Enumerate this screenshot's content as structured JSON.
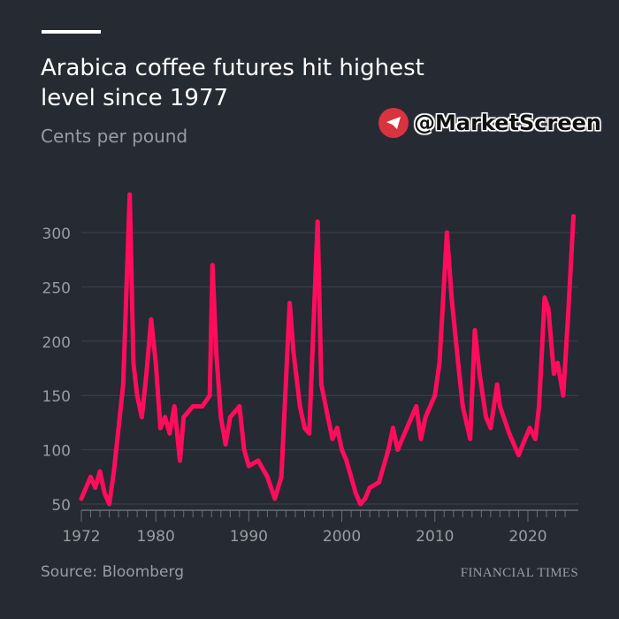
{
  "header": {
    "title": "Arabica coffee futures hit highest level since 1977",
    "subtitle": "Cents per pound"
  },
  "watermark": {
    "text": "@MarketScreen",
    "icon": "telegram-icon"
  },
  "footer": {
    "source": "Source: Bloomberg",
    "brand": "FINANCIAL TIMES"
  },
  "colors": {
    "background": "#262a33",
    "line": "#ff0d5c",
    "grid": "#3d414b",
    "text": "#9a9ca3"
  },
  "chart_data": {
    "type": "line",
    "title": "Arabica coffee futures hit highest level since 1977",
    "ylabel": "Cents per pound",
    "ylim": [
      50,
      340
    ],
    "xlim": [
      1972,
      2025
    ],
    "yticks": [
      50,
      100,
      150,
      200,
      250,
      300
    ],
    "xticks": [
      1972,
      1980,
      1990,
      2000,
      2010,
      2020
    ],
    "grid": true,
    "x": [
      1972,
      1973,
      1973.5,
      1974,
      1974.5,
      1975,
      1975.5,
      1976,
      1976.5,
      1977.2,
      1977.6,
      1978,
      1978.5,
      1979,
      1979.5,
      1980,
      1980.5,
      1981,
      1981.5,
      1982,
      1982.6,
      1983,
      1984,
      1985,
      1985.8,
      1986.1,
      1986.5,
      1987,
      1987.5,
      1988,
      1989,
      1989.5,
      1990,
      1991,
      1992,
      1992.8,
      1993.5,
      1994.4,
      1994.8,
      1995.5,
      1996,
      1996.5,
      1997.4,
      1997.8,
      1998.5,
      1999,
      1999.5,
      2000,
      2000.5,
      2001.5,
      2002,
      2002.5,
      2003,
      2004,
      2005,
      2005.5,
      2006,
      2007,
      2008,
      2008.5,
      2009,
      2010,
      2010.5,
      2011.3,
      2011.8,
      2012.5,
      2013,
      2013.8,
      2014.3,
      2014.8,
      2015.5,
      2016,
      2016.7,
      2017,
      2018,
      2019,
      2019.7,
      2020.2,
      2020.8,
      2021.2,
      2021.8,
      2022.2,
      2022.8,
      2023.2,
      2023.8,
      2024.3,
      2024.9
    ],
    "values": [
      55,
      75,
      65,
      80,
      60,
      50,
      80,
      120,
      160,
      335,
      180,
      150,
      130,
      170,
      220,
      180,
      120,
      130,
      115,
      140,
      90,
      130,
      140,
      140,
      150,
      270,
      190,
      130,
      105,
      130,
      140,
      100,
      85,
      90,
      75,
      55,
      75,
      235,
      190,
      140,
      120,
      115,
      310,
      160,
      130,
      110,
      120,
      100,
      90,
      60,
      50,
      55,
      65,
      70,
      100,
      120,
      100,
      120,
      140,
      110,
      130,
      150,
      180,
      300,
      240,
      180,
      140,
      110,
      210,
      170,
      130,
      120,
      160,
      140,
      115,
      95,
      110,
      120,
      110,
      140,
      240,
      230,
      170,
      180,
      150,
      220,
      315
    ]
  }
}
